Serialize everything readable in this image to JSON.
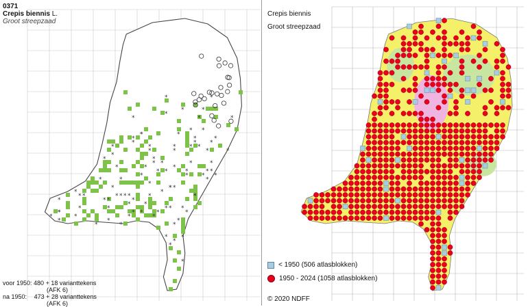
{
  "left_map": {
    "number": "0371",
    "species": "Crepis biennis",
    "author": "L.",
    "common_name": "Groot streepzaad",
    "footnote": [
      {
        "period": "voor 1950:",
        "text": "480 + 18 varianttekens",
        "ref": "(AFK 6)"
      },
      {
        "period": "na 1950:",
        "text": "473 + 28 varianttekens",
        "ref": "(AFK 6)"
      }
    ],
    "colors": {
      "records": "#7fc24a",
      "symbols": "#333333"
    }
  },
  "right_map": {
    "species": "Crepis biennis",
    "common_name": "Groot streepzaad",
    "legend": [
      {
        "label": "< 1950   (506 atlasblokken)",
        "symbol": "light-blue-square"
      },
      {
        "label": "1950 - 2024 (1058 atlasblokken)",
        "symbol": "red-dot"
      }
    ],
    "copyright": "© 2020 NDFF",
    "colors": {
      "dot": "#e8001c",
      "square": "#a9cde0",
      "yellow": "#f5f06a",
      "green": "#c8e6a0",
      "pink": "#f0b4e0"
    }
  }
}
